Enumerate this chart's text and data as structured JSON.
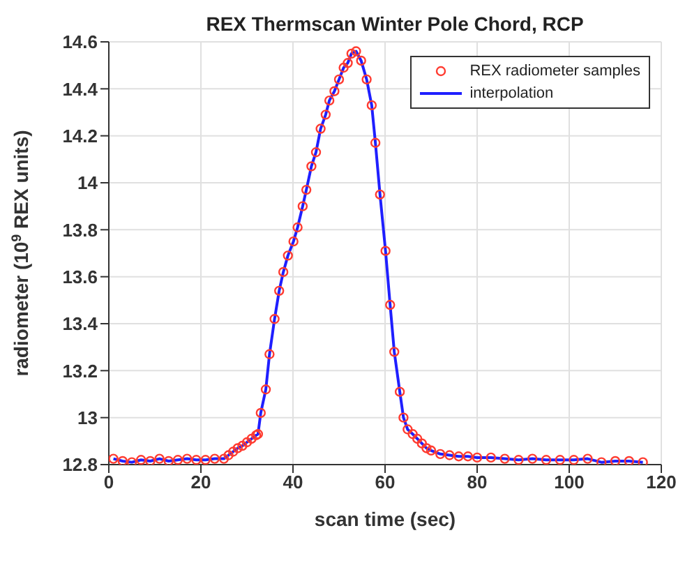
{
  "chart_data": {
    "type": "scatter",
    "title": "REX Thermscan Winter Pole Chord, RCP",
    "xlabel": "scan time (sec)",
    "ylabel": "radiometer (10$^{9}$ REX units)",
    "x": [
      1,
      3,
      5,
      7,
      9,
      11,
      13,
      15,
      17,
      19,
      21,
      23,
      25,
      26,
      27,
      28,
      29,
      30,
      31,
      32,
      32.4,
      33,
      34.1,
      34.9,
      36,
      37,
      37.9,
      38.9,
      40.1,
      41,
      42.1,
      42.9,
      44,
      45,
      46,
      47.1,
      47.9,
      49,
      50,
      51,
      51.9,
      52.7,
      53.7,
      54.8,
      56,
      57.1,
      57.9,
      58.9,
      60.1,
      61.1,
      62,
      63.2,
      64,
      64.9,
      66,
      67,
      68,
      69,
      70,
      72,
      74,
      76,
      78,
      80,
      83,
      86,
      89,
      92,
      95,
      98,
      101,
      104,
      107,
      110,
      113,
      116
    ],
    "series": [
      {
        "name": "REX radiometer samples",
        "color": "#ff3b30",
        "marker": "circle",
        "values": [
          12.825,
          12.815,
          12.81,
          12.82,
          12.815,
          12.825,
          12.815,
          12.82,
          12.825,
          12.82,
          12.82,
          12.825,
          12.825,
          12.84,
          12.855,
          12.87,
          12.88,
          12.895,
          12.91,
          12.925,
          12.93,
          13.02,
          13.12,
          13.27,
          13.42,
          13.54,
          13.62,
          13.69,
          13.75,
          13.81,
          13.9,
          13.97,
          14.07,
          14.13,
          14.23,
          14.29,
          14.35,
          14.39,
          14.44,
          14.49,
          14.51,
          14.55,
          14.56,
          14.52,
          14.44,
          14.33,
          14.17,
          13.95,
          13.71,
          13.48,
          13.28,
          13.11,
          13.0,
          12.95,
          12.93,
          12.91,
          12.89,
          12.87,
          12.86,
          12.845,
          12.84,
          12.835,
          12.835,
          12.83,
          12.83,
          12.825,
          12.82,
          12.825,
          12.82,
          12.82,
          12.82,
          12.825,
          12.81,
          12.815,
          12.815,
          12.81
        ]
      },
      {
        "name": "interpolation",
        "type": "line",
        "color": "#1f1fff",
        "marker": "none",
        "line_style": "solid",
        "values": [
          12.825,
          12.815,
          12.81,
          12.82,
          12.815,
          12.825,
          12.815,
          12.82,
          12.825,
          12.82,
          12.82,
          12.825,
          12.825,
          12.84,
          12.855,
          12.87,
          12.88,
          12.895,
          12.91,
          12.925,
          12.93,
          13.02,
          13.12,
          13.27,
          13.42,
          13.54,
          13.62,
          13.69,
          13.75,
          13.81,
          13.9,
          13.97,
          14.07,
          14.13,
          14.23,
          14.29,
          14.35,
          14.39,
          14.44,
          14.49,
          14.51,
          14.55,
          14.56,
          14.52,
          14.44,
          14.33,
          14.17,
          13.95,
          13.71,
          13.48,
          13.28,
          13.11,
          13.0,
          12.95,
          12.93,
          12.91,
          12.89,
          12.87,
          12.86,
          12.845,
          12.84,
          12.835,
          12.835,
          12.83,
          12.83,
          12.825,
          12.82,
          12.825,
          12.82,
          12.82,
          12.82,
          12.825,
          12.81,
          12.815,
          12.815,
          12.81
        ]
      }
    ],
    "xlim": [
      0,
      120
    ],
    "xticks": [
      0,
      20,
      40,
      60,
      80,
      100,
      120
    ],
    "ylim": [
      12.8,
      14.6
    ],
    "yticks": [
      12.8,
      13,
      13.2,
      13.4,
      13.6,
      13.8,
      14,
      14.2,
      14.4,
      14.6
    ],
    "grid": true,
    "legend": "top right"
  }
}
